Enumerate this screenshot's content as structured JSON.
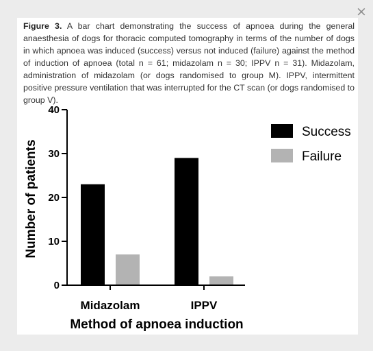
{
  "dialog": {
    "close_label": "×"
  },
  "caption": {
    "figure_label": "Figure 3.",
    "text": " A bar chart demonstrating the success of apnoea during the general anaesthesia of dogs for thoracic computed tomography in terms of the number of dogs in which apnoea was induced (success) versus not induced (failure) against the method of induction of apnoea (total n = 61; midazolam n = 30; IPPV n = 31). Midazolam, administration of midazolam (or dogs randomised to group M). IPPV, intermittent positive pressure ventilation that was interrupted for the CT scan (or dogs randomised to group V)."
  },
  "chart_data": {
    "type": "bar",
    "categories": [
      "Midazolam",
      "IPPV"
    ],
    "series": [
      {
        "name": "Success",
        "values": [
          23,
          29
        ],
        "color": "#000000"
      },
      {
        "name": "Failure",
        "values": [
          7,
          2
        ],
        "color": "#b3b3b3"
      }
    ],
    "xlabel": "Method of apnoea induction",
    "ylabel": "Number of patients",
    "ylim": [
      0,
      40
    ],
    "yticks": [
      "0",
      "10",
      "20",
      "30",
      "40"
    ],
    "grid": false,
    "legend_position": "top-right"
  }
}
